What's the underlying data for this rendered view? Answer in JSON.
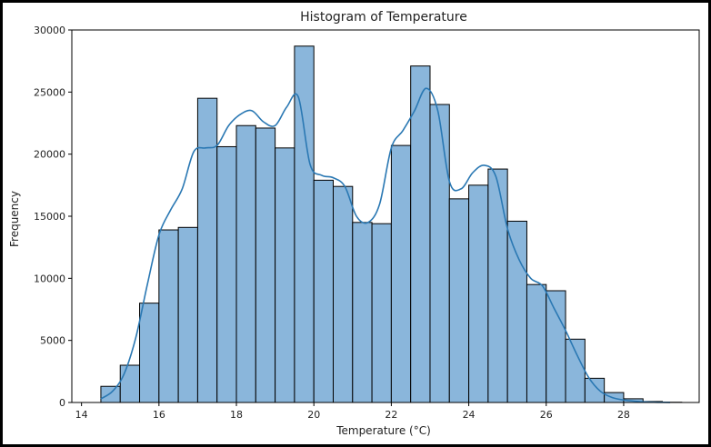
{
  "chart_data": {
    "type": "bar",
    "title": "Histogram of Temperature",
    "xlabel": "Temperature (°C)",
    "ylabel": "Frequency",
    "xlim": [
      13.75,
      29.95
    ],
    "ylim": [
      0,
      30000
    ],
    "xticks": [
      14,
      16,
      18,
      20,
      22,
      24,
      26,
      28
    ],
    "yticks": [
      0,
      5000,
      10000,
      15000,
      20000,
      25000,
      30000
    ],
    "grid": false,
    "bar_color": "#8ab6db",
    "edge_color": "#000000",
    "kde_color": "#2a78b3",
    "bins": [
      {
        "x0": 14.5,
        "x1": 15.0,
        "count": 1300
      },
      {
        "x0": 15.0,
        "x1": 15.5,
        "count": 3000
      },
      {
        "x0": 15.5,
        "x1": 16.0,
        "count": 8000
      },
      {
        "x0": 16.0,
        "x1": 16.5,
        "count": 13900
      },
      {
        "x0": 16.5,
        "x1": 17.0,
        "count": 14100
      },
      {
        "x0": 17.0,
        "x1": 17.5,
        "count": 24500
      },
      {
        "x0": 17.5,
        "x1": 18.0,
        "count": 20600
      },
      {
        "x0": 18.0,
        "x1": 18.5,
        "count": 22300
      },
      {
        "x0": 18.5,
        "x1": 19.0,
        "count": 22100
      },
      {
        "x0": 19.0,
        "x1": 19.5,
        "count": 20500
      },
      {
        "x0": 19.5,
        "x1": 20.0,
        "count": 28700
      },
      {
        "x0": 20.0,
        "x1": 20.5,
        "count": 17900
      },
      {
        "x0": 20.5,
        "x1": 21.0,
        "count": 17400
      },
      {
        "x0": 21.0,
        "x1": 21.5,
        "count": 14500
      },
      {
        "x0": 21.5,
        "x1": 22.0,
        "count": 14400
      },
      {
        "x0": 22.0,
        "x1": 22.5,
        "count": 20700
      },
      {
        "x0": 22.5,
        "x1": 23.0,
        "count": 27100
      },
      {
        "x0": 23.0,
        "x1": 23.5,
        "count": 24000
      },
      {
        "x0": 23.5,
        "x1": 24.0,
        "count": 16400
      },
      {
        "x0": 24.0,
        "x1": 24.5,
        "count": 17500
      },
      {
        "x0": 24.5,
        "x1": 25.0,
        "count": 18800
      },
      {
        "x0": 25.0,
        "x1": 25.5,
        "count": 14600
      },
      {
        "x0": 25.5,
        "x1": 26.0,
        "count": 9500
      },
      {
        "x0": 26.0,
        "x1": 26.5,
        "count": 9000
      },
      {
        "x0": 26.5,
        "x1": 27.0,
        "count": 5100
      },
      {
        "x0": 27.0,
        "x1": 27.5,
        "count": 1950
      },
      {
        "x0": 27.5,
        "x1": 28.0,
        "count": 800
      },
      {
        "x0": 28.0,
        "x1": 28.5,
        "count": 300
      },
      {
        "x0": 28.5,
        "x1": 29.0,
        "count": 80
      },
      {
        "x0": 29.0,
        "x1": 29.5,
        "count": 20
      }
    ],
    "kde": {
      "x": [
        14.5,
        14.8,
        15.1,
        15.4,
        15.7,
        16.0,
        16.3,
        16.6,
        16.9,
        17.2,
        17.5,
        17.8,
        18.1,
        18.4,
        18.7,
        19.0,
        19.3,
        19.6,
        19.9,
        20.2,
        20.5,
        20.8,
        21.1,
        21.4,
        21.7,
        22.0,
        22.3,
        22.6,
        22.9,
        23.2,
        23.5,
        23.8,
        24.1,
        24.4,
        24.7,
        25.0,
        25.3,
        25.6,
        25.9,
        26.2,
        26.5,
        26.8,
        27.1,
        27.4,
        27.7,
        28.0,
        28.3,
        28.6,
        28.9,
        29.2
      ],
      "y": [
        300,
        900,
        2300,
        5200,
        9500,
        13500,
        15500,
        17200,
        20200,
        20500,
        20700,
        22300,
        23200,
        23500,
        22600,
        22300,
        23800,
        24600,
        19200,
        18300,
        18100,
        17400,
        15000,
        14500,
        16000,
        20500,
        21900,
        23500,
        25300,
        23500,
        17800,
        17200,
        18500,
        19100,
        18200,
        14000,
        11500,
        10000,
        9400,
        7600,
        5800,
        3800,
        2000,
        900,
        400,
        200,
        100,
        40,
        15,
        5
      ]
    }
  }
}
